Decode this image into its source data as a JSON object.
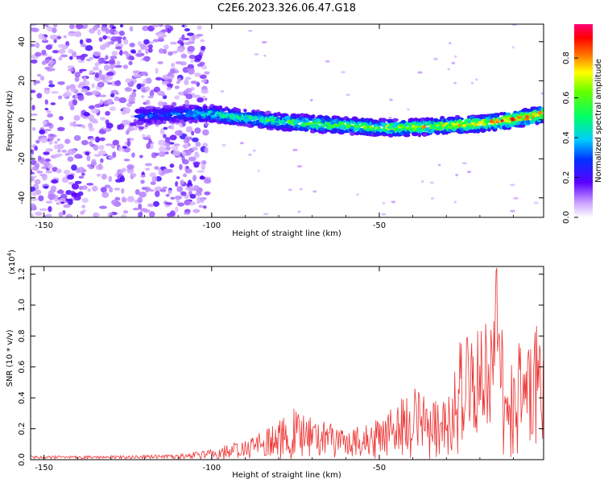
{
  "title": "C2E6.2023.326.06.47.G18",
  "chart_data": [
    {
      "type": "heatmap",
      "title": "C2E6.2023.326.06.47.G18",
      "xlabel": "Height of straight line (km)",
      "ylabel": "Frequency (Hz)",
      "xlim": [
        -154,
        -1
      ],
      "ylim": [
        -50,
        49
      ],
      "x_ticks": [
        -150,
        -100,
        -50
      ],
      "y_ticks": [
        -40,
        -20,
        0,
        20,
        40
      ],
      "colorbar": {
        "label": "Normalized spectral amplitude",
        "range": [
          0,
          0.97
        ],
        "ticks": [
          0.0,
          0.2,
          0.4,
          0.6,
          0.8
        ],
        "colormap": "rainbow"
      },
      "ridge": {
        "x": [
          -120,
          -110,
          -100,
          -90,
          -80,
          -70,
          -60,
          -50,
          -40,
          -30,
          -20,
          -10,
          -1
        ],
        "frequency": [
          2,
          3,
          3,
          1,
          -1,
          -2,
          -3,
          -4,
          -4,
          -3,
          -2,
          0,
          3
        ],
        "amplitude": [
          0.25,
          0.3,
          0.45,
          0.5,
          0.55,
          0.6,
          0.6,
          0.65,
          0.7,
          0.75,
          0.8,
          0.9,
          0.95
        ]
      },
      "noise_region_x": [
        -154,
        -101
      ],
      "grid": false
    },
    {
      "type": "line",
      "xlabel": "Height of straight line (km)",
      "ylabel": "SNR (10 * v/v)",
      "y_scale_label": "(x10",
      "y_scale_exp": "4",
      "xlim": [
        -154,
        -1
      ],
      "ylim": [
        0,
        1.25
      ],
      "x_ticks": [
        -150,
        -100,
        -50
      ],
      "y_ticks": [
        0.0,
        0.2,
        0.4,
        0.6,
        0.8,
        1.0,
        1.2
      ],
      "line_color": "#ee3333",
      "envelope": {
        "x": [
          -154,
          -130,
          -110,
          -100,
          -95,
          -90,
          -85,
          -80,
          -75,
          -70,
          -65,
          -60,
          -55,
          -50,
          -45,
          -40,
          -35,
          -30,
          -27,
          -25,
          -22,
          -20,
          -17,
          -15,
          -13,
          -10,
          -7,
          -5,
          -3,
          -1
        ],
        "y": [
          0.02,
          0.02,
          0.03,
          0.06,
          0.1,
          0.14,
          0.18,
          0.26,
          0.34,
          0.3,
          0.24,
          0.2,
          0.22,
          0.28,
          0.38,
          0.48,
          0.42,
          0.45,
          0.6,
          0.92,
          0.8,
          0.85,
          0.92,
          1.25,
          0.75,
          0.75,
          0.82,
          0.88,
          0.9,
          0.65
        ]
      },
      "grid": false
    }
  ]
}
